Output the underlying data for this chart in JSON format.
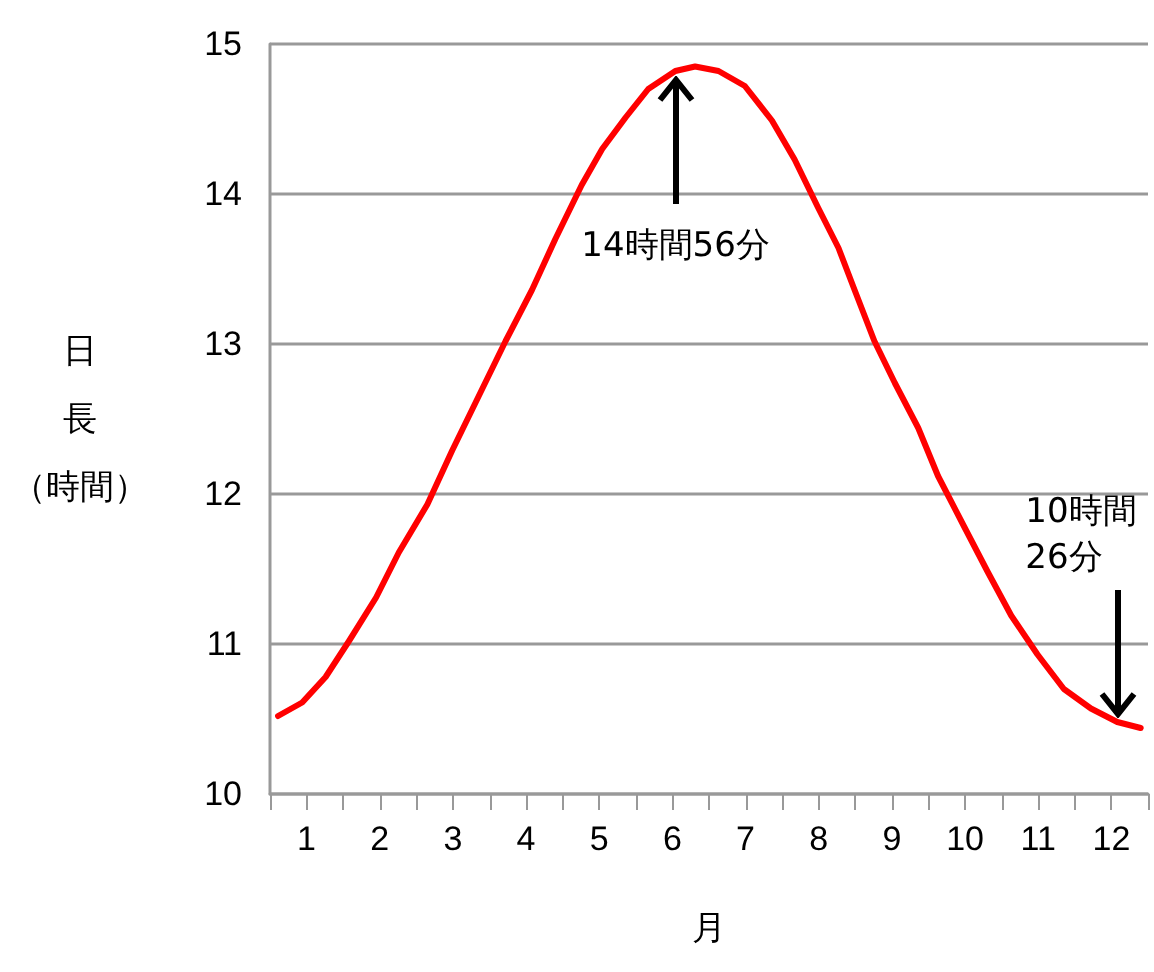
{
  "chart_data": {
    "type": "line",
    "xlabel": "月",
    "ylabel": "日長（時間）",
    "xlim": [
      0.5,
      12.5
    ],
    "xticks": [
      {
        "value": 0.5,
        "label": null
      },
      1,
      {
        "value": 1.5,
        "label": null
      },
      2,
      {
        "value": 2.5,
        "label": null
      },
      3,
      {
        "value": 3.5,
        "label": null
      },
      4,
      {
        "value": 4.5,
        "label": null
      },
      5,
      {
        "value": 5.5,
        "label": null
      },
      6,
      {
        "value": 6.5,
        "label": null
      },
      7,
      {
        "value": 7.5,
        "label": null
      },
      8,
      {
        "value": 8.5,
        "label": null
      },
      9,
      {
        "value": 9.5,
        "label": null
      },
      10,
      {
        "value": 10.5,
        "label": null
      },
      11,
      {
        "value": 11.5,
        "label": null
      },
      12,
      {
        "value": 12.5,
        "label": null
      }
    ],
    "ylim": [
      10,
      15
    ],
    "yticks": [
      10,
      11,
      12,
      13,
      14,
      15
    ],
    "grid": "y",
    "marker": "none",
    "line_style": "solid",
    "series": [
      {
        "color": "#ff0000",
        "x": [
          0.61,
          0.94,
          1.26,
          1.58,
          1.95,
          2.26,
          2.65,
          2.99,
          3.36,
          3.72,
          4.08,
          4.4,
          4.76,
          5.04,
          5.36,
          5.67,
          6.04,
          6.31,
          6.63,
          6.99,
          7.36,
          7.67,
          7.99,
          8.27,
          8.49,
          8.76,
          9.04,
          9.36,
          9.63,
          9.99,
          10.31,
          10.63,
          10.99,
          11.35,
          11.72,
          12.08,
          12.4
        ],
        "values": [
          10.52,
          10.61,
          10.78,
          11.02,
          11.31,
          11.61,
          11.93,
          12.29,
          12.66,
          13.02,
          13.36,
          13.7,
          14.06,
          14.3,
          14.51,
          14.7,
          14.82,
          14.85,
          14.82,
          14.72,
          14.49,
          14.23,
          13.91,
          13.64,
          13.36,
          13.02,
          12.74,
          12.44,
          12.12,
          11.78,
          11.48,
          11.19,
          10.93,
          10.7,
          10.57,
          10.48,
          10.44
        ]
      }
    ],
    "annotations": [
      {
        "text": "14時間56分",
        "x": 6.04,
        "y": 14.82
      },
      {
        "text": "10時間\n26分",
        "x": 12.08,
        "y": 10.48
      }
    ]
  }
}
